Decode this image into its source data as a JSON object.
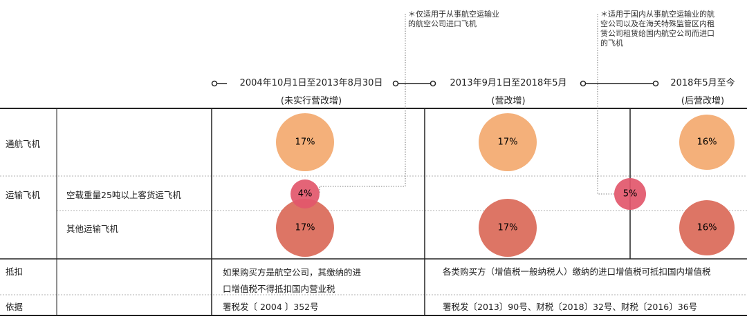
{
  "notes": {
    "note1": [
      "＊仅适用于从事航空运输业",
      "的航空公司进口飞机"
    ],
    "note2": [
      "＊适用于国内从事航空运输业的航",
      "空公司以及在海关特殊监管区内租",
      "赁公司租赁给国内航空公司而进口",
      "的飞机"
    ]
  },
  "periods": [
    {
      "line1": "2004年10月1日至2013年8月30日",
      "line2": "(未实行营改增)"
    },
    {
      "line1": "2013年9月1日至2018年5月",
      "line2": "(营改增)"
    },
    {
      "line1": "2018年5月至今",
      "line2": "(后营改增)"
    }
  ],
  "rows": {
    "general_aviation": "通航飞机",
    "transport": "运输飞机",
    "transport_large": "空载重量25吨以上客货运飞机",
    "transport_other": "其他运输飞机",
    "deduction": "抵扣",
    "basis": "依据"
  },
  "bubbles": {
    "ga_p1": "17%",
    "ga_p2": "17%",
    "ga_p3": "16%",
    "large_p1": "4%",
    "large_p2": "5%",
    "other_p1": "17%",
    "other_p2": "17%",
    "other_p3": "16%"
  },
  "deduction_text": {
    "p1": [
      "如果购买方是航空公司，其缴纳的进",
      "口增值税不得抵扣国内营业税"
    ],
    "p2": "各类购买方（增值税一般纳税人）缴纳的进口增值税可抵扣国内增值税"
  },
  "basis_text": {
    "p1": "署税发〔 2004 〕352号",
    "p2": "署税发〔2013〕90号、财税〔2018〕32号、财税〔2016〕36号"
  },
  "colors": {
    "orange": "#f4b07a",
    "coral": "#dd7565",
    "pink": "#e2576b",
    "rule": "#222222"
  }
}
